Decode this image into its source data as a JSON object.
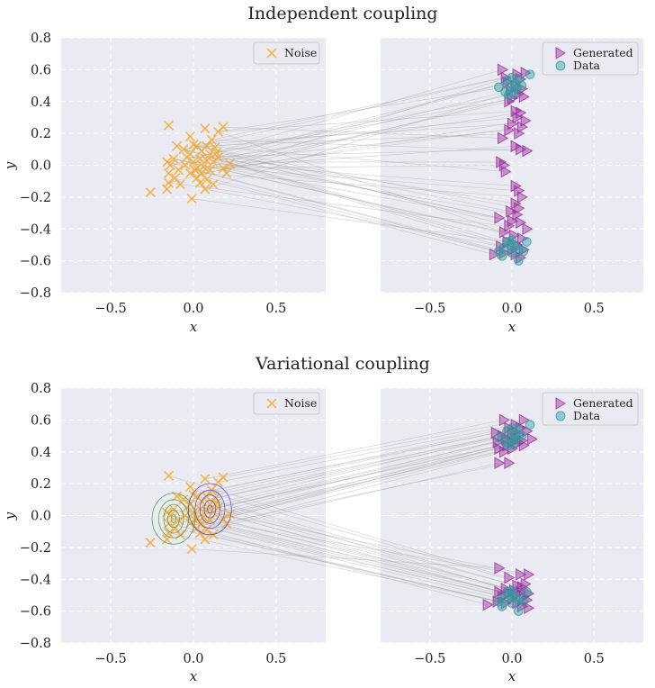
{
  "colors": {
    "panel_bg": "#EAEAF2",
    "grid": "#FFFFFF",
    "noise": "#F5A623",
    "generated": "#9B2D9B",
    "data": "#2E9E9E",
    "line": "#9A9A9A",
    "contour_left": "#3C9A3C",
    "contour_right": "#3C3CE6"
  },
  "chart_data": [
    {
      "type": "scatter",
      "title": "Independent coupling",
      "panels": [
        {
          "xlabel": "x",
          "ylabel": "y",
          "xlim": [
            -0.8,
            0.8
          ],
          "ylim": [
            -0.8,
            0.8
          ],
          "xticks": [
            "−0.5",
            "0.0",
            "0.5"
          ],
          "yticks": [
            "0.8",
            "0.6",
            "0.4",
            "0.2",
            "0.0",
            "−0.2",
            "−0.4",
            "−0.6",
            "−0.8"
          ],
          "legend": [
            "Noise"
          ],
          "legend_position": "upper right"
        },
        {
          "xlabel": "x",
          "xlim": [
            -0.8,
            0.8
          ],
          "ylim": [
            -0.8,
            0.8
          ],
          "xticks": [
            "−0.5",
            "0.0",
            "0.5"
          ],
          "legend": [
            "Generated",
            "Data"
          ],
          "legend_position": "upper right"
        }
      ]
    },
    {
      "type": "scatter",
      "title": "Variational coupling",
      "panels": [
        {
          "xlabel": "x",
          "ylabel": "y",
          "xlim": [
            -0.8,
            0.8
          ],
          "ylim": [
            -0.8,
            0.8
          ],
          "xticks": [
            "−0.5",
            "0.0",
            "0.5"
          ],
          "yticks": [
            "0.8",
            "0.6",
            "0.4",
            "0.2",
            "0.0",
            "−0.2",
            "−0.4",
            "−0.6",
            "−0.8"
          ],
          "legend": [
            "Noise"
          ],
          "legend_position": "upper right",
          "contours": [
            {
              "center": [
                -0.12,
                -0.02
              ],
              "radii": [
                [
                  0.13,
                  0.16
                ],
                [
                  0.09,
                  0.12
                ],
                [
                  0.06,
                  0.09
                ],
                [
                  0.035,
                  0.055
                ],
                [
                  0.015,
                  0.025
                ]
              ]
            },
            {
              "center": [
                0.1,
                0.04
              ],
              "radii": [
                [
                  0.13,
                  0.16
                ],
                [
                  0.09,
                  0.12
                ],
                [
                  0.06,
                  0.09
                ],
                [
                  0.035,
                  0.055
                ],
                [
                  0.015,
                  0.025
                ]
              ]
            }
          ]
        },
        {
          "xlabel": "x",
          "xlim": [
            -0.8,
            0.8
          ],
          "ylim": [
            -0.8,
            0.8
          ],
          "xticks": [
            "−0.5",
            "0.0",
            "0.5"
          ],
          "legend": [
            "Generated",
            "Data"
          ],
          "legend_position": "upper right"
        }
      ]
    }
  ],
  "series": {
    "noise": [
      [
        -0.15,
        0.25
      ],
      [
        0.07,
        0.23
      ],
      [
        0.18,
        0.24
      ],
      [
        0.15,
        0.21
      ],
      [
        -0.02,
        0.18
      ],
      [
        0.11,
        0.16
      ],
      [
        -0.1,
        0.12
      ],
      [
        0.0,
        0.13
      ],
      [
        0.02,
        0.12
      ],
      [
        0.08,
        0.12
      ],
      [
        0.13,
        0.11
      ],
      [
        -0.06,
        0.1
      ],
      [
        0.05,
        0.09
      ],
      [
        0.1,
        0.07
      ],
      [
        -0.02,
        0.07
      ],
      [
        0.15,
        0.05
      ],
      [
        -0.12,
        0.04
      ],
      [
        0.04,
        0.04
      ],
      [
        0.08,
        0.03
      ],
      [
        -0.16,
        0.02
      ],
      [
        0.0,
        0.02
      ],
      [
        0.12,
        0.02
      ],
      [
        0.22,
        0.01
      ],
      [
        -0.14,
        0.0
      ],
      [
        -0.05,
        0.0
      ],
      [
        0.06,
        -0.01
      ],
      [
        0.18,
        -0.02
      ],
      [
        -0.09,
        -0.03
      ],
      [
        0.01,
        -0.03
      ],
      [
        0.1,
        -0.03
      ],
      [
        -0.15,
        -0.05
      ],
      [
        -0.02,
        -0.05
      ],
      [
        0.05,
        -0.05
      ],
      [
        0.2,
        -0.05
      ],
      [
        -0.11,
        -0.08
      ],
      [
        0.02,
        -0.08
      ],
      [
        0.08,
        -0.09
      ],
      [
        -0.15,
        -0.11
      ],
      [
        0.04,
        -0.11
      ],
      [
        -0.08,
        -0.12
      ],
      [
        0.12,
        -0.12
      ],
      [
        -0.16,
        -0.15
      ],
      [
        0.07,
        -0.15
      ],
      [
        -0.26,
        -0.17
      ],
      [
        -0.01,
        -0.21
      ],
      [
        0.02,
        -0.02
      ],
      [
        -0.04,
        0.05
      ],
      [
        0.14,
        0.08
      ]
    ],
    "generated_top": [
      [
        -0.06,
        0.6
      ],
      [
        0.03,
        0.57
      ],
      [
        0.08,
        0.58
      ],
      [
        -0.04,
        0.55
      ],
      [
        0.05,
        0.54
      ],
      [
        -0.03,
        0.52
      ],
      [
        0.02,
        0.5
      ],
      [
        0.06,
        0.48
      ],
      [
        -0.01,
        0.47
      ],
      [
        0.04,
        0.45
      ],
      [
        0.07,
        0.43
      ],
      [
        0.0,
        0.42
      ],
      [
        -0.02,
        0.4
      ],
      [
        0.02,
        0.34
      ],
      [
        0.05,
        0.33
      ],
      [
        0.03,
        0.3
      ],
      [
        0.08,
        0.28
      ],
      [
        0.0,
        0.26
      ],
      [
        0.06,
        0.24
      ],
      [
        -0.02,
        0.22
      ],
      [
        0.04,
        0.2
      ],
      [
        -0.06,
        0.17
      ],
      [
        0.02,
        0.12
      ],
      [
        0.05,
        0.1
      ],
      [
        0.09,
        0.09
      ],
      [
        -0.07,
        0.02
      ],
      [
        -0.05,
        0.0
      ],
      [
        -0.04,
        -0.04
      ]
    ],
    "generated_bot": [
      [
        0.02,
        -0.13
      ],
      [
        0.04,
        -0.16
      ],
      [
        0.06,
        -0.2
      ],
      [
        0.02,
        -0.24
      ],
      [
        0.04,
        -0.27
      ],
      [
        -0.01,
        -0.29
      ],
      [
        0.03,
        -0.31
      ],
      [
        -0.08,
        -0.33
      ],
      [
        0.0,
        -0.35
      ],
      [
        0.05,
        -0.36
      ],
      [
        -0.02,
        -0.38
      ],
      [
        0.09,
        -0.4
      ],
      [
        -0.05,
        -0.42
      ],
      [
        0.01,
        -0.44
      ],
      [
        0.06,
        -0.46
      ],
      [
        -0.03,
        -0.48
      ],
      [
        0.03,
        -0.5
      ],
      [
        -0.07,
        -0.51
      ],
      [
        0.0,
        -0.53
      ],
      [
        0.07,
        -0.53
      ],
      [
        -0.05,
        -0.55
      ],
      [
        0.02,
        -0.56
      ],
      [
        -0.11,
        -0.56
      ],
      [
        0.05,
        -0.58
      ]
    ],
    "data": [
      [
        0.11,
        0.57
      ],
      [
        0.0,
        0.55
      ],
      [
        0.04,
        0.54
      ],
      [
        -0.03,
        0.53
      ],
      [
        0.02,
        0.51
      ],
      [
        0.06,
        0.5
      ],
      [
        -0.08,
        0.49
      ],
      [
        -0.01,
        0.49
      ],
      [
        0.03,
        0.48
      ],
      [
        -0.04,
        0.46
      ],
      [
        0.01,
        0.45
      ],
      [
        -0.02,
        0.44
      ],
      [
        0.0,
        -0.47
      ],
      [
        -0.03,
        -0.48
      ],
      [
        0.09,
        -0.48
      ],
      [
        -0.01,
        -0.5
      ],
      [
        0.02,
        -0.51
      ],
      [
        -0.05,
        -0.52
      ],
      [
        0.04,
        -0.53
      ],
      [
        -0.08,
        -0.54
      ],
      [
        0.0,
        -0.55
      ],
      [
        0.07,
        -0.54
      ],
      [
        -0.06,
        -0.57
      ],
      [
        0.04,
        -0.6
      ]
    ],
    "generated_var_top": [
      [
        -0.05,
        0.6
      ],
      [
        0.07,
        0.6
      ],
      [
        0.02,
        0.57
      ],
      [
        0.05,
        0.55
      ],
      [
        -0.02,
        0.55
      ],
      [
        -0.1,
        0.52
      ],
      [
        0.09,
        0.53
      ],
      [
        0.0,
        0.52
      ],
      [
        0.04,
        0.51
      ],
      [
        -0.06,
        0.5
      ],
      [
        0.12,
        0.48
      ],
      [
        0.02,
        0.49
      ],
      [
        -0.04,
        0.48
      ],
      [
        0.06,
        0.47
      ],
      [
        -0.09,
        0.46
      ],
      [
        0.0,
        0.46
      ],
      [
        0.03,
        0.45
      ],
      [
        -0.03,
        0.44
      ],
      [
        0.07,
        0.44
      ],
      [
        -0.08,
        0.42
      ],
      [
        0.0,
        0.42
      ],
      [
        -0.05,
        0.4
      ],
      [
        -0.02,
        0.33
      ],
      [
        -0.08,
        0.33
      ]
    ],
    "generated_var_bot": [
      [
        -0.08,
        -0.33
      ],
      [
        0.05,
        -0.37
      ],
      [
        0.1,
        -0.37
      ],
      [
        -0.02,
        -0.39
      ],
      [
        0.08,
        -0.43
      ],
      [
        0.03,
        -0.44
      ],
      [
        0.06,
        -0.45
      ],
      [
        -0.04,
        -0.46
      ],
      [
        0.01,
        -0.47
      ],
      [
        -0.08,
        -0.48
      ],
      [
        0.05,
        -0.48
      ],
      [
        0.1,
        -0.49
      ],
      [
        -0.02,
        -0.49
      ],
      [
        0.02,
        -0.5
      ],
      [
        -0.06,
        -0.51
      ],
      [
        0.07,
        -0.51
      ],
      [
        0.0,
        -0.52
      ],
      [
        0.09,
        -0.53
      ],
      [
        -0.09,
        -0.54
      ],
      [
        0.03,
        -0.55
      ],
      [
        -0.04,
        -0.55
      ],
      [
        -0.15,
        -0.56
      ],
      [
        0.06,
        -0.57
      ],
      [
        0.1,
        -0.58
      ]
    ]
  }
}
